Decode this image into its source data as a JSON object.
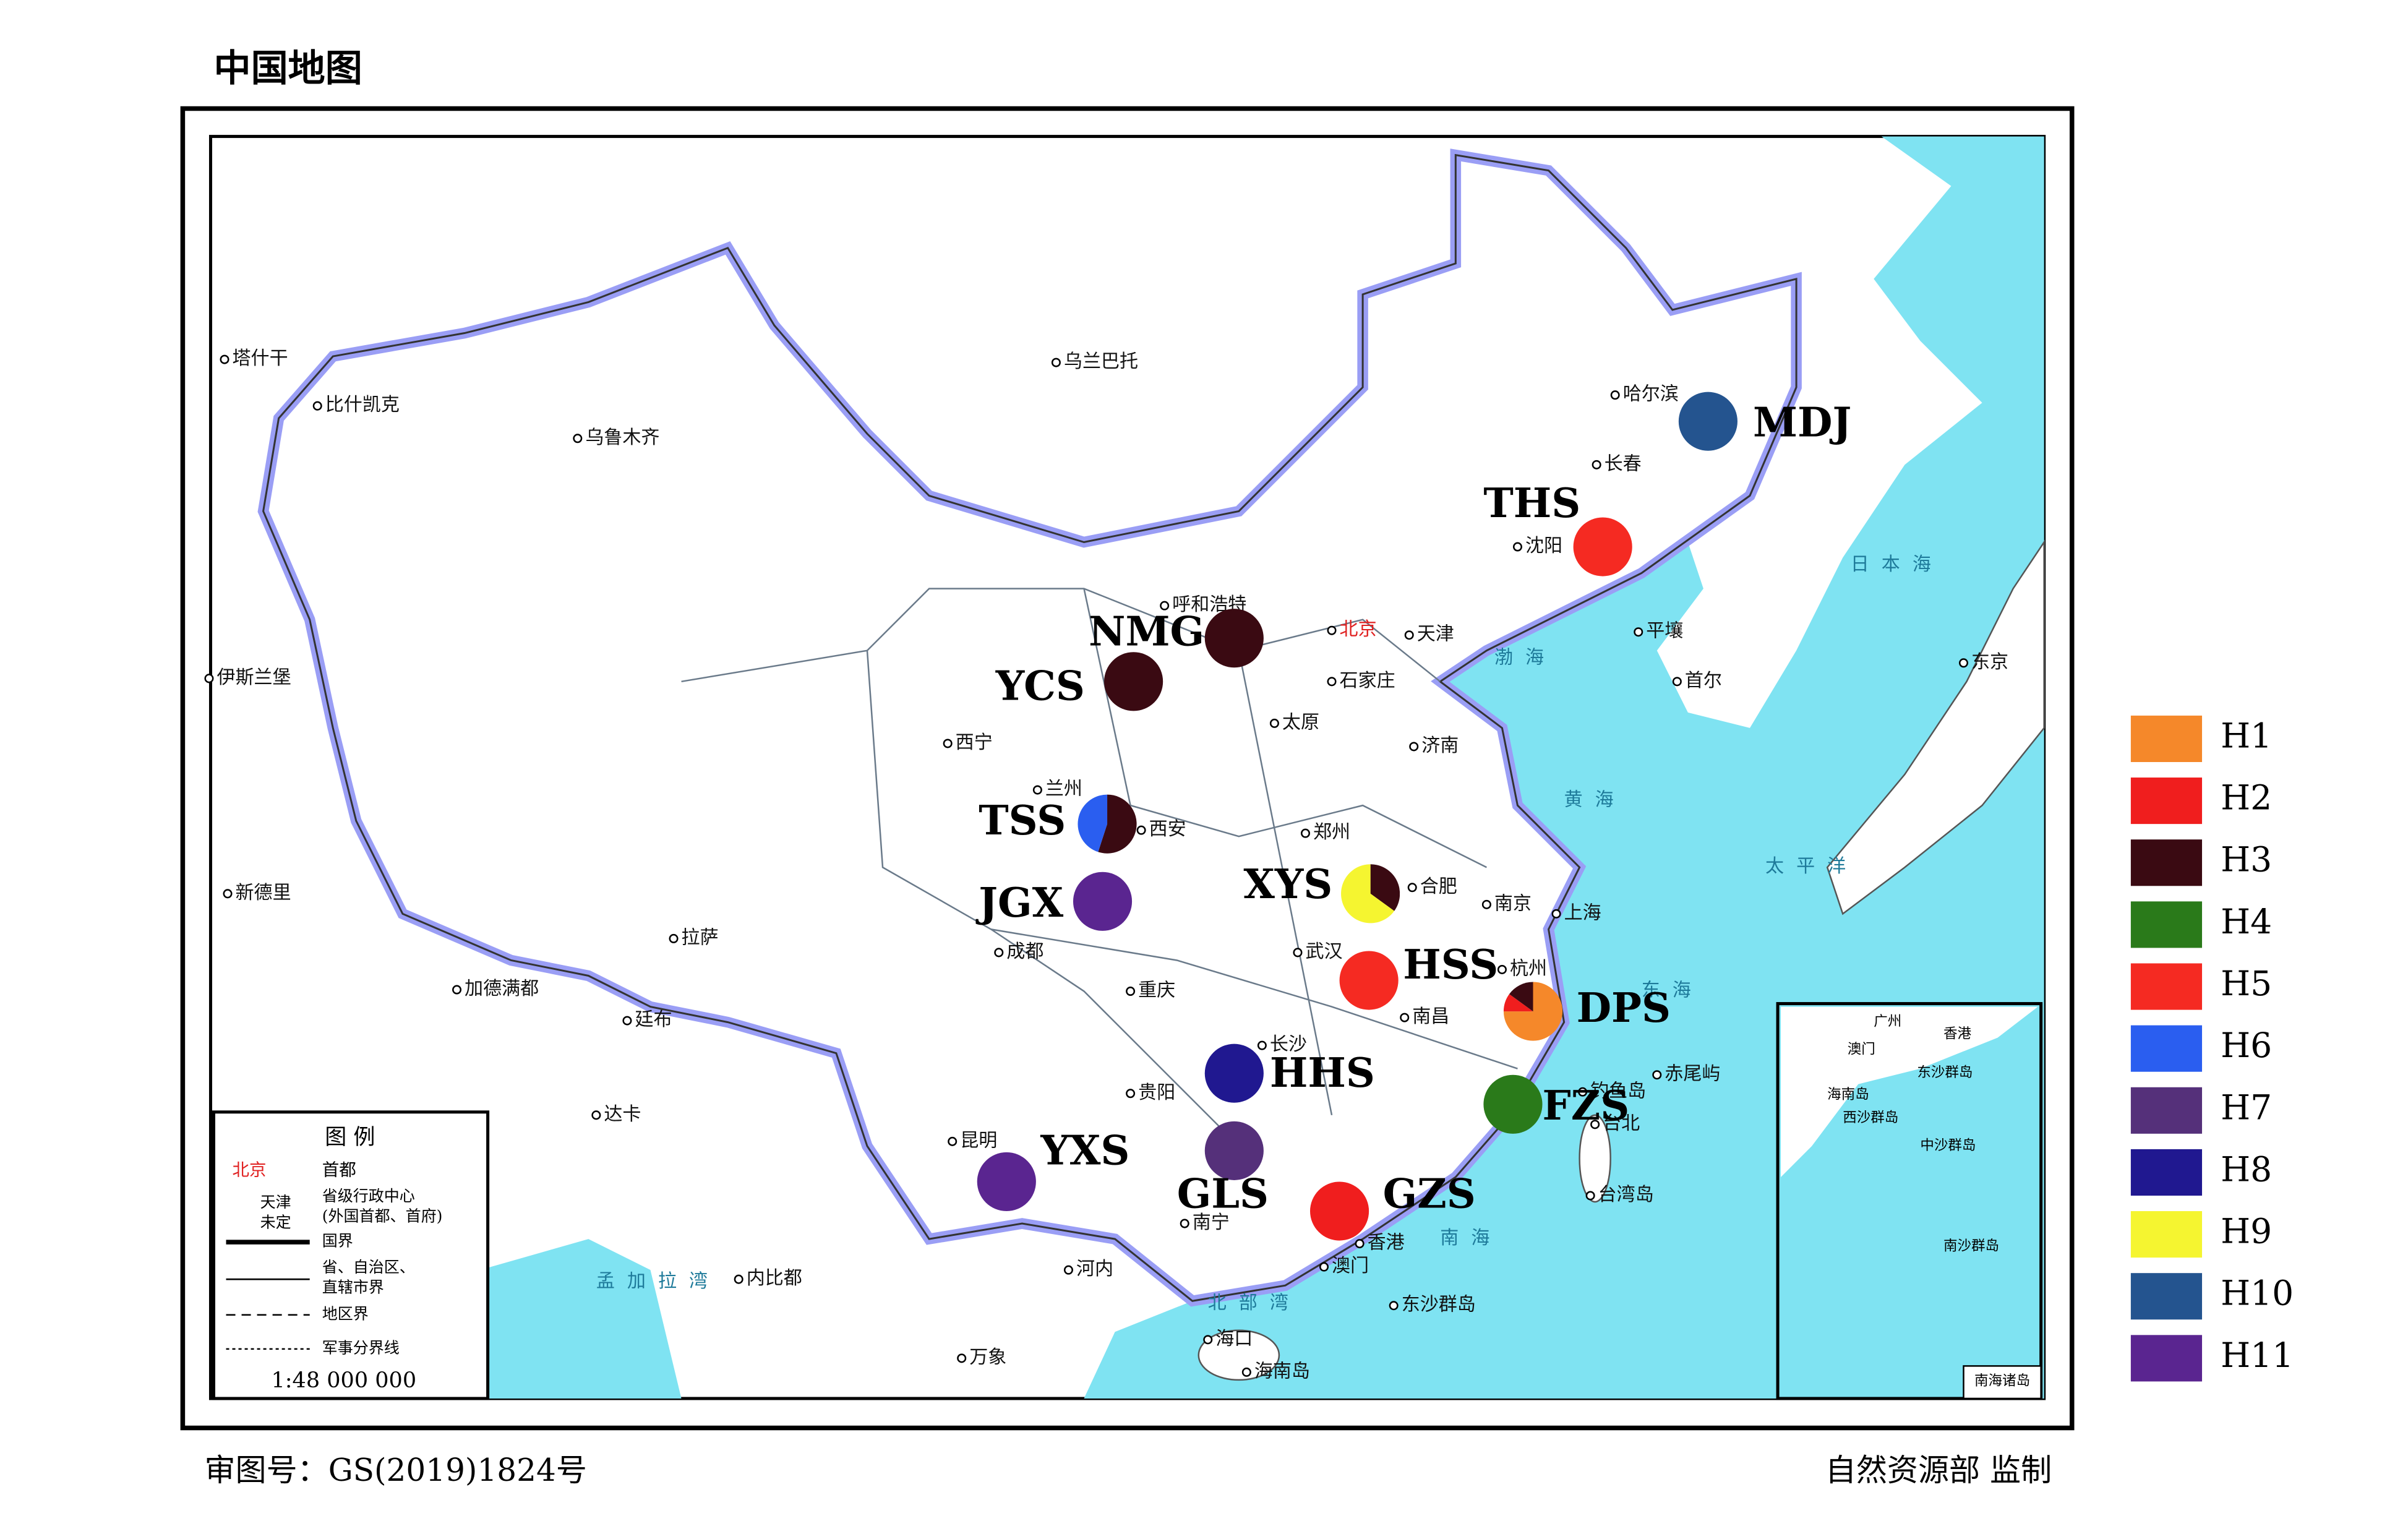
{
  "title": "中国地图",
  "footer": {
    "approval": "审图号：GS(2019)1824号",
    "publisher": "自然资源部 监制"
  },
  "map_legend": {
    "title": "图 例",
    "items": [
      {
        "sample": "北京",
        "label": "首都"
      },
      {
        "sample": "天津",
        "label": "省级行政中心"
      },
      {
        "sample": "未定",
        "label": "(外国首都、首府)"
      },
      {
        "label": "国界"
      },
      {
        "label": "省、自治区、"
      },
      {
        "label": "直辖市界"
      },
      {
        "label": "地区界"
      },
      {
        "label": "军事分界线"
      }
    ],
    "scale": "1:48 000 000"
  },
  "haplotypes": [
    {
      "name": "H1",
      "color": "#f5882a"
    },
    {
      "name": "H2",
      "color": "#f01e1e"
    },
    {
      "name": "H3",
      "color": "#3a0a12"
    },
    {
      "name": "H4",
      "color": "#2a7a1a"
    },
    {
      "name": "H5",
      "color": "#f52a22"
    },
    {
      "name": "H6",
      "color": "#2a5ef0"
    },
    {
      "name": "H7",
      "color": "#55307a"
    },
    {
      "name": "H8",
      "color": "#201890"
    },
    {
      "name": "H9",
      "color": "#f5f530"
    },
    {
      "name": "H10",
      "color": "#24548f"
    },
    {
      "name": "H11",
      "color": "#5a2590"
    }
  ],
  "sites": [
    {
      "code": "MDJ",
      "values": [
        0,
        0,
        0,
        0,
        0,
        0,
        0,
        0,
        0,
        1,
        0
      ]
    },
    {
      "code": "THS",
      "values": [
        0,
        0,
        0,
        0,
        1,
        0,
        0,
        0,
        0,
        0,
        0
      ]
    },
    {
      "code": "NMG",
      "values": [
        0,
        0,
        1,
        0,
        0,
        0,
        0,
        0,
        0,
        0,
        0
      ]
    },
    {
      "code": "YCS",
      "values": [
        0,
        0,
        1,
        0,
        0,
        0,
        0,
        0,
        0,
        0,
        0
      ]
    },
    {
      "code": "TSS",
      "values": [
        0,
        0,
        0.55,
        0,
        0,
        0.45,
        0,
        0,
        0,
        0,
        0
      ]
    },
    {
      "code": "JGX",
      "values": [
        0,
        0,
        0,
        0,
        0,
        0,
        0,
        0,
        0,
        0,
        1
      ]
    },
    {
      "code": "XYS",
      "values": [
        0,
        0,
        0.35,
        0,
        0,
        0,
        0,
        0,
        0.65,
        0,
        0
      ]
    },
    {
      "code": "HSS",
      "values": [
        0,
        0,
        0,
        0,
        1,
        0,
        0,
        0,
        0,
        0,
        0
      ]
    },
    {
      "code": "DPS",
      "values": [
        0.75,
        0.1,
        0.15,
        0,
        0,
        0,
        0,
        0,
        0,
        0,
        0
      ]
    },
    {
      "code": "HHS",
      "values": [
        0,
        0,
        0,
        0,
        0,
        0,
        0,
        1,
        0,
        0,
        0
      ]
    },
    {
      "code": "FZS",
      "values": [
        0,
        0,
        0,
        1,
        0,
        0,
        0,
        0,
        0,
        0,
        0
      ]
    },
    {
      "code": "YXS",
      "values": [
        0,
        0,
        0,
        0,
        0,
        0,
        0,
        0,
        0,
        0,
        1
      ]
    },
    {
      "code": "GLS",
      "values": [
        0,
        0,
        0,
        0,
        0,
        0,
        1,
        0,
        0,
        0,
        0
      ]
    },
    {
      "code": "GZS",
      "values": [
        0,
        1,
        0,
        0,
        0,
        0,
        0,
        0,
        0,
        0,
        0
      ]
    }
  ],
  "places": [
    "塔什干",
    "比什凯克",
    "乌鲁木齐",
    "乌兰巴托",
    "哈尔滨",
    "长春",
    "沈阳",
    "平壤",
    "首尔",
    "东京",
    "呼和浩特",
    "北京",
    "天津",
    "石家庄",
    "太原",
    "济南",
    "西宁",
    "兰州",
    "西安",
    "郑州",
    "合肥",
    "南京",
    "上海",
    "武汉",
    "杭州",
    "南昌",
    "长沙",
    "台北",
    "台湾岛",
    "贵阳",
    "重庆",
    "成都",
    "拉萨",
    "昆明",
    "南宁",
    "香港",
    "澳门",
    "海口",
    "海南岛",
    "东沙群岛",
    "河内",
    "万象",
    "达卡",
    "内比都",
    "新德里",
    "伊斯兰堡",
    "加德满都",
    "廷布",
    "赤尾屿",
    "钓鱼岛"
  ],
  "seas": [
    "日本海",
    "渤海",
    "黄海",
    "东海",
    "太平洋",
    "南海",
    "孟加拉湾",
    "北部湾"
  ],
  "inset": {
    "title": "南海诸岛",
    "places": [
      "广州",
      "香港",
      "澳门",
      "海南岛",
      "东沙群岛",
      "西沙群岛",
      "中沙群岛",
      "南沙群岛"
    ]
  }
}
